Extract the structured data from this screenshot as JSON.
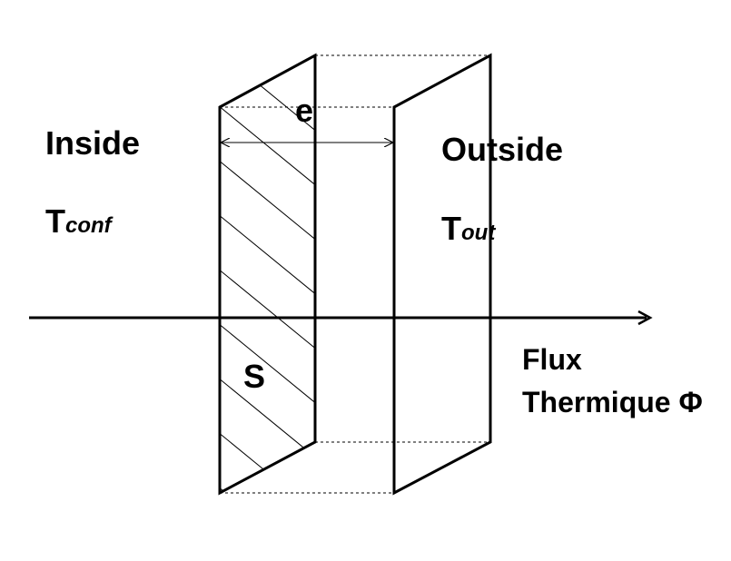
{
  "labels": {
    "inside": "Inside",
    "outside": "Outside",
    "t_conf_main": "T",
    "t_conf_sub": "conf",
    "t_out_main": "T",
    "t_out_sub": "out",
    "thickness": "e",
    "surface": "S",
    "flux_line1": "Flux",
    "flux_line2": "Thermique Φ"
  },
  "colors": {
    "line": "#000000",
    "background": "#ffffff"
  }
}
